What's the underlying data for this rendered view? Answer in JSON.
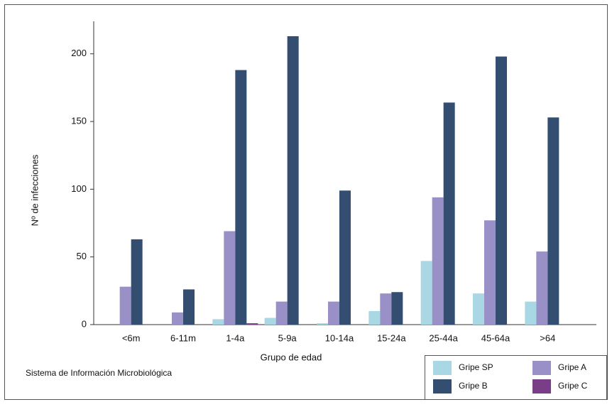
{
  "chart_data": {
    "type": "bar",
    "y_label": "Nº de infecciones",
    "x_label": "Grupo de edad",
    "source": "Sistema de Información Microbiológica",
    "categories": [
      "<6m",
      "6-11m",
      "1-4a",
      "5-9a",
      "10-14a",
      "15-24a",
      "25-44a",
      "45-64a",
      ">64"
    ],
    "series": [
      {
        "name": "Gripe SP",
        "color": "#a9d8e4",
        "values": [
          0,
          0,
          4,
          5,
          1,
          10,
          47,
          23,
          17
        ]
      },
      {
        "name": "Gripe A",
        "color": "#9990c8",
        "values": [
          28,
          9,
          69,
          17,
          17,
          23,
          94,
          77,
          54
        ]
      },
      {
        "name": "Gripe B",
        "color": "#344e72",
        "values": [
          63,
          26,
          188,
          213,
          99,
          24,
          164,
          198,
          153
        ]
      },
      {
        "name": "Gripe C",
        "color": "#7a3d88",
        "values": [
          0,
          0,
          1,
          0,
          0,
          0,
          0,
          0,
          0
        ]
      }
    ],
    "ylim": [
      0,
      224
    ],
    "yticks": [
      0,
      50,
      100,
      150,
      200
    ],
    "grid": false
  }
}
